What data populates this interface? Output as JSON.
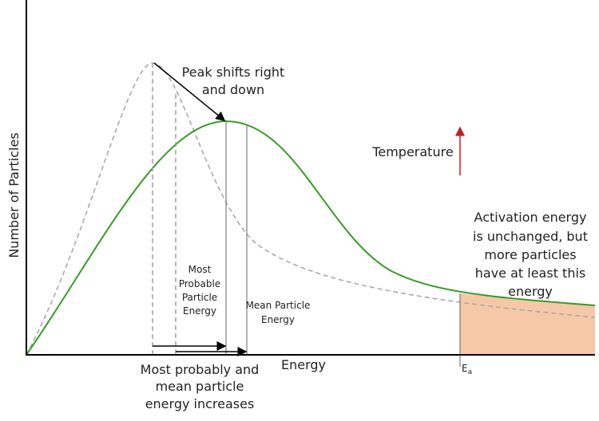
{
  "annotations": {
    "peak_shift": [
      "Peak shifts right",
      "and down"
    ],
    "temperature": "Temperature",
    "activation": [
      "Activation energy",
      "is unchanged, but",
      "more particles",
      "have at least this",
      "energy"
    ],
    "most_probable": [
      "Most",
      "Probable",
      "Particle",
      "Energy"
    ],
    "mean": [
      "Mean Particle",
      "Energy"
    ],
    "increase": [
      "Most probably and",
      "mean particle",
      "energy increases"
    ]
  },
  "axes": {
    "x_label": "Energy",
    "y_label": "Number of Particles",
    "ea_label": {
      "main": "E",
      "sub": "a"
    }
  }
}
